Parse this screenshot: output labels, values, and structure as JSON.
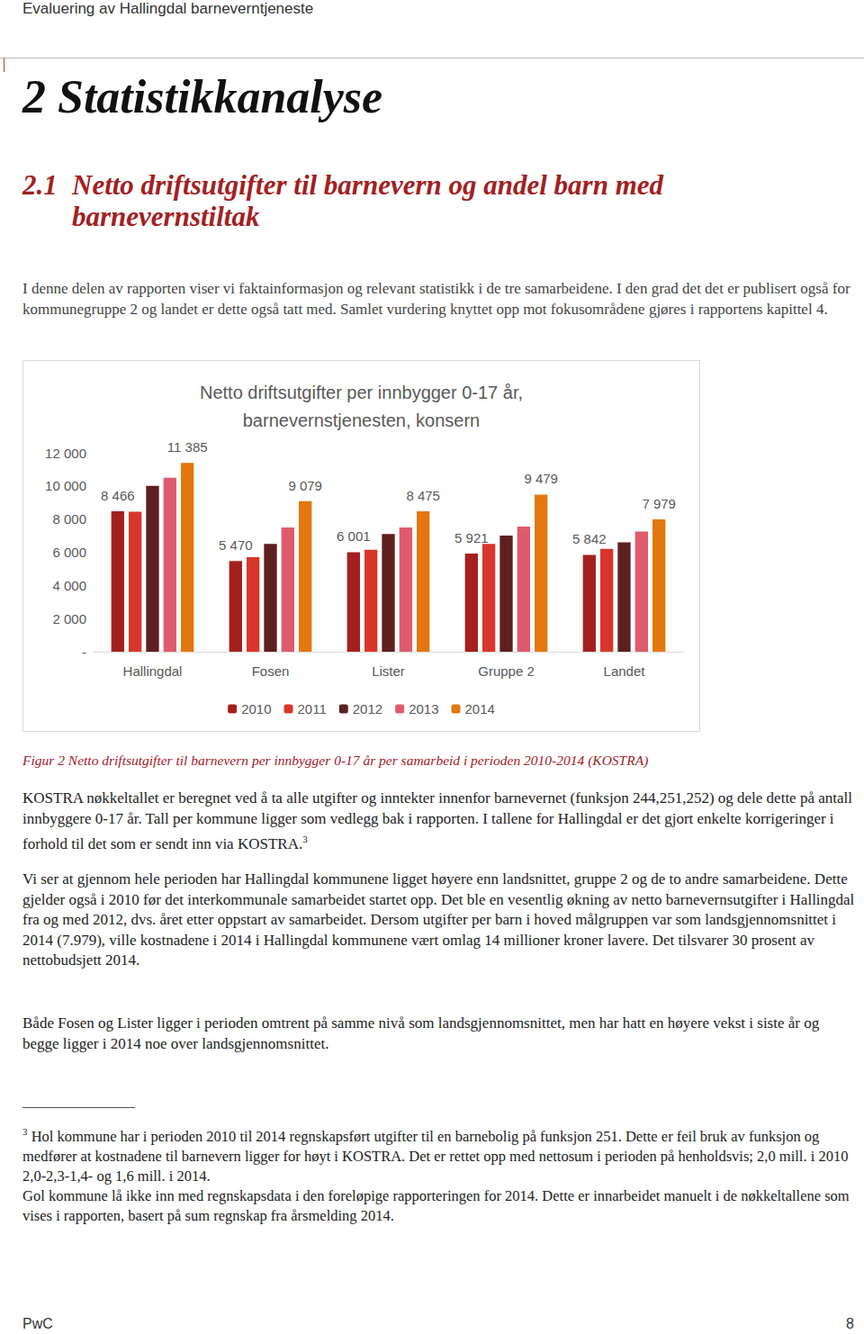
{
  "header": {
    "title": "Evaluering av Hallingdal barneverntjeneste"
  },
  "section": {
    "number": "2",
    "title": "Statistikkanalyse"
  },
  "subsection": {
    "number": "2.1",
    "title": "Netto driftsutgifter til barnevern og andel barn med barnevernstiltak"
  },
  "intro": "I denne delen av rapporten viser vi faktainformasjon og relevant statistikk i de tre samarbeidene. I den grad det det er publisert også for kommunegruppe 2 og landet er dette også tatt med. Samlet vurdering knyttet opp mot fokusområdene gjøres i rapportens kapittel 4.",
  "chart_data": {
    "type": "bar",
    "title": "Netto driftsutgifter per innbygger 0-17 år,\nbarnevernstjenesten, konsern",
    "categories": [
      "Hallingdal",
      "Fosen",
      "Lister",
      "Gruppe 2",
      "Landet"
    ],
    "series": [
      {
        "name": "2010",
        "color": "#a4201f",
        "values": [
          8466,
          5470,
          6001,
          5921,
          5842
        ],
        "value_labels": [
          "8 466",
          "5 470",
          "6 001",
          "5 921",
          "5 842"
        ]
      },
      {
        "name": "2011",
        "color": "#d9362b",
        "values": [
          8450,
          5700,
          6150,
          6500,
          6200
        ],
        "value_labels": [
          null,
          null,
          null,
          null,
          null
        ]
      },
      {
        "name": "2012",
        "color": "#5e1f1f",
        "values": [
          10000,
          6500,
          7100,
          7000,
          6600
        ],
        "value_labels": [
          null,
          null,
          null,
          null,
          null
        ]
      },
      {
        "name": "2013",
        "color": "#e05a6d",
        "values": [
          10500,
          7500,
          7500,
          7550,
          7250
        ],
        "value_labels": [
          null,
          null,
          null,
          null,
          null
        ]
      },
      {
        "name": "2014",
        "color": "#e2780f",
        "values": [
          11385,
          9079,
          8475,
          9479,
          7979
        ],
        "value_labels": [
          "11 385",
          "9 079",
          "8 475",
          "9 479",
          "7 979"
        ]
      }
    ],
    "ylim": [
      0,
      12000
    ],
    "yticks": [
      {
        "value": 0,
        "label": "-"
      },
      {
        "value": 2000,
        "label": "2 000"
      },
      {
        "value": 4000,
        "label": "4 000"
      },
      {
        "value": 6000,
        "label": "6 000"
      },
      {
        "value": 8000,
        "label": "8 000"
      },
      {
        "value": 10000,
        "label": "10 000"
      },
      {
        "value": 12000,
        "label": "12 000"
      }
    ],
    "grid": false,
    "legend": "bottom",
    "data_labels": true
  },
  "caption": "Figur 2 Netto driftsutgifter til barnevern per innbygger 0-17 år per samarbeid i perioden 2010-2014 (KOSTRA)",
  "paragraphs": [
    {
      "text": "KOSTRA nøkkeltallet er beregnet ved å ta alle utgifter og inntekter innenfor barnevernet (funksjon 244,251,252) og dele dette på antall innbyggere 0-17 år. Tall per kommune ligger som vedlegg bak i rapporten. I tallene for Hallingdal er det gjort enkelte korrigeringer i forhold til det som er sendt inn via KOSTRA.",
      "note_ref": "3"
    },
    {
      "text": "Vi ser at gjennom hele perioden har Hallingdal kommunene ligget høyere enn landsnittet, gruppe 2 og de to andre samarbeidene. Dette gjelder også i 2010 før det interkommunale samarbeidet startet opp. Det ble en vesentlig økning av netto barnevernsutgifter i Hallingdal fra og med 2012, dvs. året etter oppstart av samarbeidet. Dersom utgifter per barn i hoved målgruppen var som landsgjennomsnittet i 2014 (7.979), ville kostnadene i 2014 i Hallingdal kommunene vært omlag 14 millioner kroner lavere. Det tilsvarer 30 prosent av nettobudsjett 2014."
    },
    {
      "text": "Både Fosen og Lister ligger i perioden omtrent på samme nivå som landsgjennomsnittet, men har hatt en høyere vekst i siste år og begge ligger i 2014 noe over landsgjennomsnittet."
    }
  ],
  "footnote": {
    "number": "3",
    "texts": [
      "Hol kommune har i perioden 2010 til 2014 regnskapsført utgifter til en barnebolig på funksjon 251. Dette er feil bruk av funksjon og medfører at kostnadene til barnevern ligger for høyt i KOSTRA. Det er rettet opp med nettosum i perioden på henholdsvis; 2,0 mill. i 2010 2,0-2,3-1,4- og 1,6 mill. i 2014.",
      "Gol kommune lå ikke inn med regnskapsdata i den foreløpige rapporteringen for 2014. Dette er innarbeidet manuelt i de nøkkeltallene som vises i rapporten, basert på sum regnskap fra årsmelding 2014."
    ]
  },
  "footer": {
    "left": "PwC",
    "right": "8"
  }
}
